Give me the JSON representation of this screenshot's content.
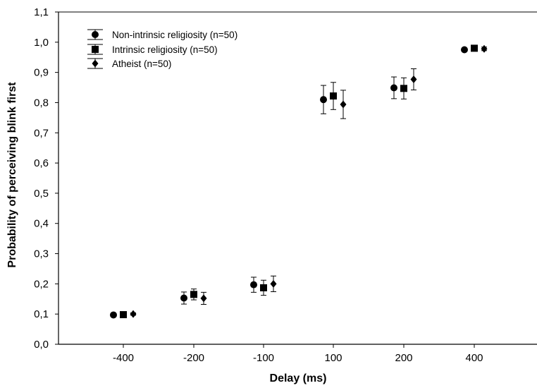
{
  "chart_data": {
    "type": "scatter",
    "title": "",
    "xlabel": "Delay (ms)",
    "ylabel": "Probability of perceiving blink first",
    "categories": [
      "-400",
      "-200",
      "-100",
      "100",
      "200",
      "400"
    ],
    "yticks": [
      "0,0",
      "0,1",
      "0,2",
      "0,3",
      "0,4",
      "0,5",
      "0,6",
      "0,7",
      "0,8",
      "0,9",
      "1,0",
      "1,1"
    ],
    "ylim": [
      0,
      1.1
    ],
    "grid": false,
    "legend_position": "top-left",
    "error_bars": true,
    "series": [
      {
        "name": "Non-intrinsic religiosity (n=50)",
        "marker": "circle",
        "values": [
          0.097,
          0.153,
          0.197,
          0.81,
          0.849,
          0.975
        ],
        "error": [
          0.003,
          0.02,
          0.025,
          0.047,
          0.036,
          0.005
        ]
      },
      {
        "name": "Intrinsic religiosity (n=50)",
        "marker": "square",
        "values": [
          0.098,
          0.165,
          0.187,
          0.822,
          0.847,
          0.98
        ],
        "error": [
          0.003,
          0.018,
          0.025,
          0.045,
          0.035,
          0.004
        ]
      },
      {
        "name": "Atheist (n=50)",
        "marker": "diamond",
        "values": [
          0.1,
          0.152,
          0.2,
          0.794,
          0.877,
          0.978
        ],
        "error": [
          0.004,
          0.02,
          0.026,
          0.047,
          0.035,
          0.006
        ]
      }
    ]
  }
}
